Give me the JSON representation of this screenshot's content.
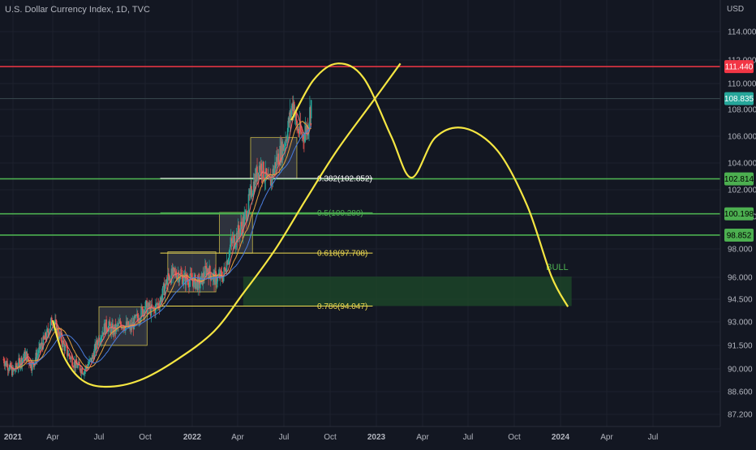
{
  "chart_data": {
    "type": "candlestick",
    "title": "U.S. Dollar Currency Index, 1D, TVC",
    "price_axis": {
      "unit_label": "USD",
      "ticks": [
        {
          "v": 114.0,
          "label": "114.000"
        },
        {
          "v": 112.0,
          "label": "112.000"
        },
        {
          "v": 110.0,
          "label": "110.000"
        },
        {
          "v": 108.0,
          "label": "108.000"
        },
        {
          "v": 106.0,
          "label": "106.000"
        },
        {
          "v": 104.0,
          "label": "104.000"
        },
        {
          "v": 102.0,
          "label": "102.000"
        },
        {
          "v": 100.0,
          "label": "100.000"
        },
        {
          "v": 98.0,
          "label": "98.000"
        },
        {
          "v": 96.0,
          "label": "96.000"
        },
        {
          "v": 94.5,
          "label": "94.500"
        },
        {
          "v": 93.0,
          "label": "93.000"
        },
        {
          "v": 91.5,
          "label": "91.500"
        },
        {
          "v": 90.0,
          "label": "90.000"
        },
        {
          "v": 88.6,
          "label": "88.600"
        },
        {
          "v": 87.2,
          "label": "87.200"
        }
      ]
    },
    "time_axis": {
      "ticks": [
        {
          "t": 2021.0,
          "label": "2021",
          "bold": true
        },
        {
          "t": 2021.25,
          "label": "Apr"
        },
        {
          "t": 2021.5,
          "label": "Jul"
        },
        {
          "t": 2021.75,
          "label": "Oct"
        },
        {
          "t": 2022.0,
          "label": "2022",
          "bold": true
        },
        {
          "t": 2022.25,
          "label": "Apr"
        },
        {
          "t": 2022.5,
          "label": "Jul"
        },
        {
          "t": 2022.75,
          "label": "Oct"
        },
        {
          "t": 2023.0,
          "label": "2023",
          "bold": true
        },
        {
          "t": 2023.25,
          "label": "Apr"
        },
        {
          "t": 2023.5,
          "label": "Jul"
        },
        {
          "t": 2023.75,
          "label": "Oct"
        },
        {
          "t": 2024.0,
          "label": "2024",
          "bold": true
        },
        {
          "t": 2024.25,
          "label": "Apr"
        },
        {
          "t": 2024.5,
          "label": "Jul"
        }
      ]
    },
    "price_path": [
      [
        2020.94,
        90.6
      ],
      [
        2021.0,
        89.8
      ],
      [
        2021.04,
        90.4
      ],
      [
        2021.08,
        90.9
      ],
      [
        2021.12,
        90.2
      ],
      [
        2021.17,
        91.3
      ],
      [
        2021.21,
        92.1
      ],
      [
        2021.25,
        93.2
      ],
      [
        2021.29,
        92.0
      ],
      [
        2021.33,
        91.0
      ],
      [
        2021.37,
        90.3
      ],
      [
        2021.42,
        89.9
      ],
      [
        2021.46,
        90.6
      ],
      [
        2021.5,
        92.0
      ],
      [
        2021.54,
        92.8
      ],
      [
        2021.58,
        92.4
      ],
      [
        2021.62,
        92.9
      ],
      [
        2021.67,
        92.6
      ],
      [
        2021.71,
        93.3
      ],
      [
        2021.75,
        94.0
      ],
      [
        2021.79,
        93.7
      ],
      [
        2021.83,
        94.4
      ],
      [
        2021.87,
        96.0
      ],
      [
        2021.92,
        96.3
      ],
      [
        2021.96,
        95.9
      ],
      [
        2022.0,
        95.8
      ],
      [
        2022.04,
        95.5
      ],
      [
        2022.08,
        96.6
      ],
      [
        2022.12,
        95.9
      ],
      [
        2022.17,
        96.1
      ],
      [
        2022.21,
        98.2
      ],
      [
        2022.25,
        98.9
      ],
      [
        2022.29,
        99.9
      ],
      [
        2022.33,
        102.2
      ],
      [
        2022.37,
        103.9
      ],
      [
        2022.42,
        102.3
      ],
      [
        2022.46,
        104.2
      ],
      [
        2022.5,
        105.3
      ],
      [
        2022.53,
        107.2
      ],
      [
        2022.55,
        108.7
      ],
      [
        2022.57,
        106.6
      ],
      [
        2022.6,
        106.0
      ],
      [
        2022.63,
        106.8
      ],
      [
        2022.65,
        108.8
      ]
    ],
    "consolidation_boxes": [
      {
        "t0": 2021.5,
        "t1": 2021.76,
        "p0": 91.5,
        "p1": 94.0
      },
      {
        "t0": 2021.87,
        "t1": 2022.13,
        "p0": 95.0,
        "p1": 97.8
      },
      {
        "t0": 2022.15,
        "t1": 2022.33,
        "p0": 97.7,
        "p1": 100.3
      },
      {
        "t0": 2022.32,
        "t1": 2022.57,
        "p0": 102.8,
        "p1": 105.9
      }
    ],
    "horizontal_lines": [
      {
        "price": 111.44,
        "color": "#f23645"
      },
      {
        "price": 108.835,
        "color": "#3a4a4f"
      },
      {
        "price": 102.814,
        "color": "#4caf50"
      },
      {
        "price": 100.198,
        "color": "#4caf50"
      },
      {
        "price": 98.852,
        "color": "#4caf50"
      }
    ],
    "price_tags": [
      {
        "price": 111.44,
        "label": "111.440",
        "bg": "#f23645",
        "fg": "#ffffff"
      },
      {
        "price": 108.835,
        "label": "108.835",
        "bg": "#26a69a",
        "fg": "#ffffff"
      },
      {
        "price": 102.814,
        "label": "102.814",
        "bg": "#4caf50",
        "fg": "#000000"
      },
      {
        "price": 100.198,
        "label": "100.198",
        "bg": "#4caf50",
        "fg": "#000000"
      },
      {
        "price": 98.852,
        "label": "98.852",
        "bg": "#4caf50",
        "fg": "#000000"
      }
    ],
    "fib_levels": [
      {
        "label": "0.382(102.852)",
        "price": 102.852,
        "t0": 2021.83,
        "t1": 2022.98,
        "color": "#ffffff"
      },
      {
        "label": "0.5(100.280)",
        "price": 100.28,
        "t0": 2021.83,
        "t1": 2022.98,
        "color": "#4caf50"
      },
      {
        "label": "0.618(97.708)",
        "price": 97.708,
        "t0": 2021.83,
        "t1": 2022.98,
        "color": "#f0dc50"
      },
      {
        "label": "0.786(94.047)",
        "price": 94.047,
        "t0": 2021.83,
        "t1": 2022.98,
        "color": "#f0dc50"
      }
    ],
    "bull_zone": {
      "t0": 2022.28,
      "t1": 2024.06,
      "p0": 94.05,
      "p1": 96.05,
      "label": "BULL"
    },
    "projection_path": [
      [
        2022.54,
        107.2
      ],
      [
        2022.66,
        110.3
      ],
      [
        2022.79,
        111.7
      ],
      [
        2022.93,
        110.5
      ],
      [
        2023.08,
        106.0
      ],
      [
        2023.19,
        102.9
      ],
      [
        2023.32,
        105.9
      ],
      [
        2023.48,
        106.6
      ],
      [
        2023.66,
        104.9
      ],
      [
        2023.82,
        100.8
      ],
      [
        2023.95,
        96.1
      ],
      [
        2024.04,
        94.0
      ]
    ],
    "arc_path": [
      [
        2021.25,
        93.1
      ],
      [
        2021.31,
        90.8
      ],
      [
        2021.41,
        89.3
      ],
      [
        2021.54,
        88.9
      ],
      [
        2021.72,
        89.3
      ],
      [
        2021.92,
        90.6
      ],
      [
        2022.12,
        92.4
      ],
      [
        2022.28,
        94.9
      ],
      [
        2022.45,
        97.9
      ],
      [
        2022.62,
        101.3
      ],
      [
        2022.79,
        105.0
      ],
      [
        2022.98,
        108.6
      ],
      [
        2023.13,
        111.7
      ]
    ],
    "colors": {
      "background": "#131722",
      "grid": "#1e222d",
      "candle_up": "#26a69a",
      "candle_down": "#ef5350",
      "ma_fast": "#ef6c6c",
      "ma_slow": "#4a7dde",
      "projection": "#f5e642",
      "bull_zone": "#1d4b2a"
    }
  }
}
